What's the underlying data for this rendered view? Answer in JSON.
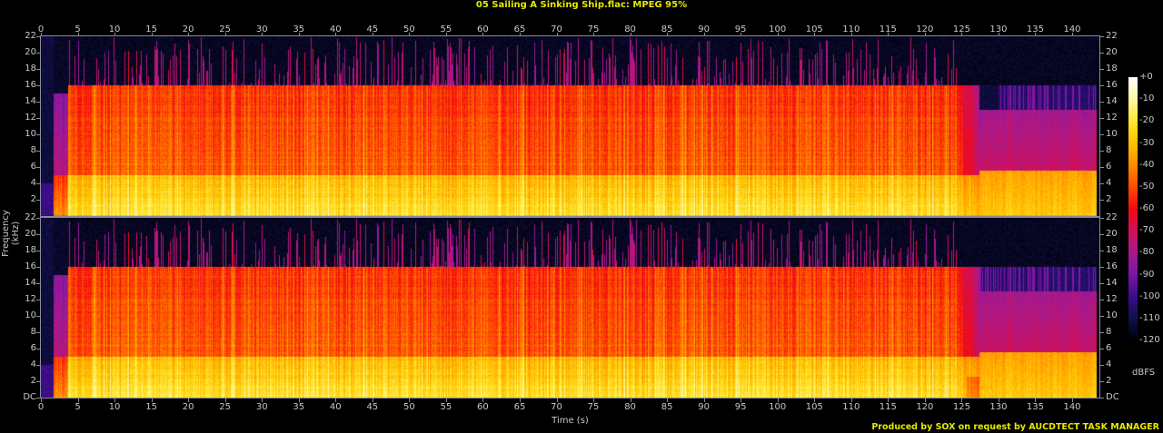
{
  "title": "05 Sailing A Sinking Ship.flac: MPEG 95%",
  "footer": "Produced by SOX on request by AUCDTECT TASK MANAGER",
  "chart_data": {
    "type": "heatmap",
    "title": "05 Sailing A Sinking Ship.flac: MPEG 95%",
    "xlabel": "Time (s)",
    "ylabel": "Frequency (kHz)",
    "xlim": [
      0,
      143.7
    ],
    "ylim": [
      0,
      22
    ],
    "channels": 2,
    "x_ticks": [
      "0",
      "5",
      "10",
      "15",
      "20",
      "25",
      "30",
      "35",
      "40",
      "45",
      "50",
      "55",
      "60",
      "65",
      "70",
      "75",
      "80",
      "85",
      "90",
      "95",
      "100",
      "105",
      "110",
      "115",
      "120",
      "125",
      "130",
      "135",
      "140"
    ],
    "y_ticks": [
      "DC",
      "2",
      "4",
      "6",
      "8",
      "10",
      "12",
      "14",
      "16",
      "18",
      "20",
      "22"
    ],
    "colorbar": {
      "label": "dBFS",
      "range": [
        -120,
        0
      ],
      "ticks": [
        "+0",
        "-10",
        "-20",
        "-30",
        "-40",
        "-50",
        "-60",
        "-70",
        "-80",
        "-90",
        "-100",
        "-110",
        "-120"
      ],
      "colors": [
        "#000008",
        "#12104a",
        "#3a0c8c",
        "#7a16a8",
        "#a81a8c",
        "#d0105a",
        "#f40a10",
        "#ff4a00",
        "#ff8c00",
        "#ffc000",
        "#ffe830",
        "#fff9a0",
        "#ffffff"
      ]
    },
    "segments": [
      {
        "start_s": 0,
        "end_s": 1.7,
        "content": "near silence",
        "level_db": -110
      },
      {
        "start_s": 1.7,
        "end_s": 3.6,
        "content": "intro, content up to ~15 kHz",
        "level_db": -70
      },
      {
        "start_s": 3.6,
        "end_s": 124.5,
        "content": "full band, lowpass cutoff",
        "cutoff_khz": 16,
        "level_low_db": -25,
        "level_mid_db": -50
      },
      {
        "start_s": 124.5,
        "end_s": 127.3,
        "content": "fade transition",
        "cutoff_khz": 16
      },
      {
        "start_s": 127.3,
        "end_s": 143.3,
        "content": "quiet outro",
        "cutoff_khz": 16,
        "level_low_db": -30,
        "level_mid_db": -75,
        "gap_above_khz": 13
      }
    ]
  }
}
